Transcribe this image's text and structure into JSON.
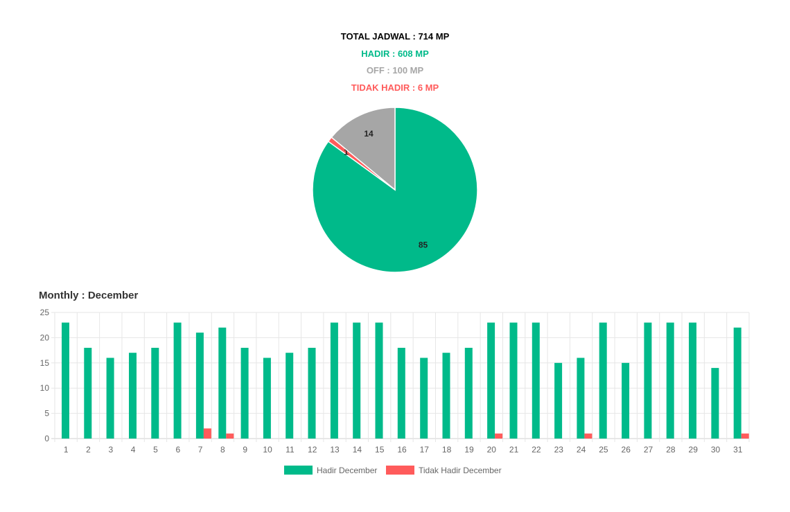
{
  "summary": {
    "total": {
      "text": "TOTAL JADWAL : 714 MP",
      "color": "#000000"
    },
    "hadir": {
      "text": "HADIR : 608 MP",
      "color": "#00BA8A"
    },
    "off": {
      "text": "OFF : 100 MP",
      "color": "#A6A6A6"
    },
    "tidak_hadir": {
      "text": "TIDAK HADIR : 6 MP",
      "color": "#FF5B5B"
    }
  },
  "monthly": {
    "title": "Monthly : December"
  },
  "chart_data": [
    {
      "type": "pie",
      "slices": [
        {
          "label": "Hadir",
          "value": 85,
          "color": "#00BA8A"
        },
        {
          "label": "Tidak Hadir",
          "value": 1,
          "color": "#FF5B5B"
        },
        {
          "label": "Off",
          "value": 14,
          "color": "#A6A6A6"
        }
      ]
    },
    {
      "type": "bar",
      "categories": [
        "1",
        "2",
        "3",
        "4",
        "5",
        "6",
        "7",
        "8",
        "9",
        "10",
        "11",
        "12",
        "13",
        "14",
        "15",
        "16",
        "17",
        "18",
        "19",
        "20",
        "21",
        "22",
        "23",
        "24",
        "25",
        "26",
        "27",
        "28",
        "29",
        "30",
        "31"
      ],
      "series": [
        {
          "name": "Hadir December",
          "color": "#00BA8A",
          "values": [
            23,
            18,
            16,
            17,
            18,
            23,
            21,
            22,
            18,
            16,
            17,
            18,
            23,
            23,
            23,
            18,
            16,
            17,
            18,
            23,
            23,
            23,
            15,
            16,
            23,
            15,
            23,
            23,
            23,
            14,
            22
          ]
        },
        {
          "name": "Tidak Hadir December",
          "color": "#FF5B5B",
          "values": [
            0,
            0,
            0,
            0,
            0,
            0,
            2,
            1,
            0,
            0,
            0,
            0,
            0,
            0,
            0,
            0,
            0,
            0,
            0,
            1,
            0,
            0,
            0,
            1,
            0,
            0,
            0,
            0,
            0,
            0,
            1
          ]
        }
      ],
      "ylim": [
        0,
        25
      ],
      "yticks": [
        0,
        5,
        10,
        15,
        20,
        25
      ],
      "grid": true,
      "legend_position": "bottom"
    }
  ]
}
